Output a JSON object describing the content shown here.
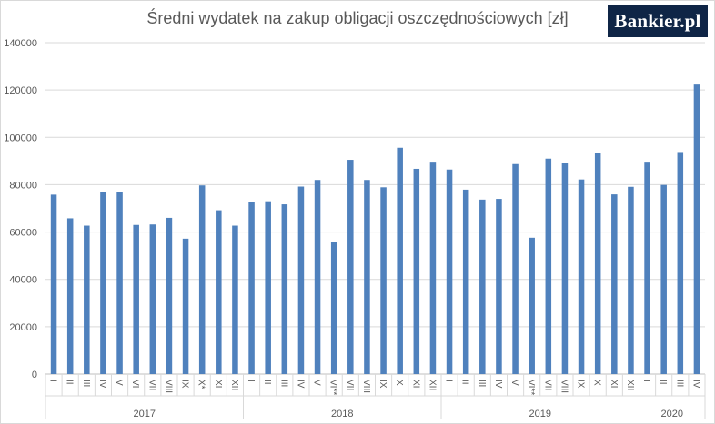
{
  "logo": "Bankier.pl",
  "chart_data": {
    "type": "bar",
    "title": "Średni wydatek na zakup obligacji oszczędnościowych [zł]",
    "xlabel": "",
    "ylabel": "",
    "ylim": [
      0,
      140000
    ],
    "yticks": [
      0,
      20000,
      40000,
      60000,
      80000,
      100000,
      120000,
      140000
    ],
    "grid": true,
    "legend": "none",
    "bar_color": "#4f81bd",
    "groups": [
      {
        "year": "2017",
        "categories": [
          "I",
          "II",
          "III",
          "IV",
          "V",
          "VI",
          "VII",
          "VIII",
          "IX",
          "X*",
          "XI",
          "XII"
        ],
        "values": [
          75800,
          65800,
          62700,
          77000,
          76800,
          63000,
          63200,
          66000,
          57200,
          79700,
          69200,
          62700
        ]
      },
      {
        "year": "2018",
        "categories": [
          "I",
          "II",
          "III",
          "IV",
          "V",
          "VI**",
          "VII",
          "VIII",
          "IX",
          "X",
          "XI",
          "XII"
        ],
        "values": [
          72800,
          73000,
          71700,
          79200,
          82000,
          55800,
          90500,
          82000,
          78900,
          95600,
          86700,
          89700
        ]
      },
      {
        "year": "2019",
        "categories": [
          "I",
          "II",
          "III",
          "IV",
          "V",
          "VI**",
          "VII",
          "VIII",
          "IX",
          "X",
          "XI",
          "XII"
        ],
        "values": [
          86400,
          77900,
          73700,
          74000,
          88700,
          57600,
          91000,
          89100,
          82200,
          93300,
          75900,
          79100
        ]
      },
      {
        "year": "2020",
        "categories": [
          "I",
          "II",
          "III",
          "IV"
        ],
        "values": [
          89700,
          79900,
          93800,
          122300
        ]
      }
    ]
  }
}
